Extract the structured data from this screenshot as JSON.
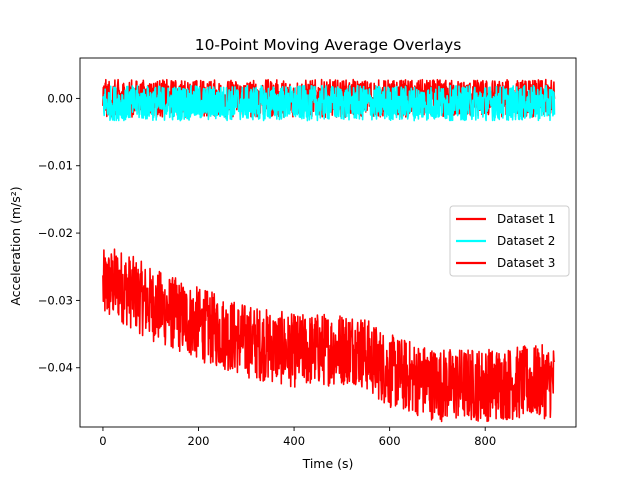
{
  "chart_data": {
    "type": "line",
    "title": "10-Point Moving Average Overlays",
    "xlabel": "Time (s)",
    "ylabel": "Acceleration (m/s²)",
    "xlim": [
      -48,
      990
    ],
    "ylim": [
      -0.0488,
      0.006
    ],
    "xticks": [
      0,
      200,
      400,
      600,
      800
    ],
    "xtick_labels": [
      "0",
      "200",
      "400",
      "600",
      "800"
    ],
    "yticks": [
      0.0,
      -0.01,
      -0.02,
      -0.03,
      -0.04
    ],
    "ytick_labels": [
      "0.00",
      "−0.01",
      "−0.02",
      "−0.03",
      "−0.04"
    ],
    "grid": false,
    "legend_position": "center-right",
    "x_range": [
      0,
      945
    ],
    "series": [
      {
        "name": "Dataset 1",
        "color": "#ff0000",
        "noise_amplitude": 0.0028,
        "trend": [
          [
            0,
            0.0
          ],
          [
            945,
            0.0
          ]
        ]
      },
      {
        "name": "Dataset 2",
        "color": "#00ffff",
        "noise_amplitude": 0.0026,
        "trend": [
          [
            0,
            -0.0007
          ],
          [
            945,
            -0.0007
          ]
        ]
      },
      {
        "name": "Dataset 3",
        "color": "#ff0000",
        "noise_amplitude": 0.0055,
        "trend": [
          [
            0,
            -0.028
          ],
          [
            30,
            -0.0275
          ],
          [
            100,
            -0.0305
          ],
          [
            200,
            -0.0335
          ],
          [
            300,
            -0.036
          ],
          [
            400,
            -0.0375
          ],
          [
            530,
            -0.037
          ],
          [
            600,
            -0.0405
          ],
          [
            700,
            -0.0425
          ],
          [
            800,
            -0.0425
          ],
          [
            945,
            -0.042
          ]
        ]
      }
    ]
  }
}
